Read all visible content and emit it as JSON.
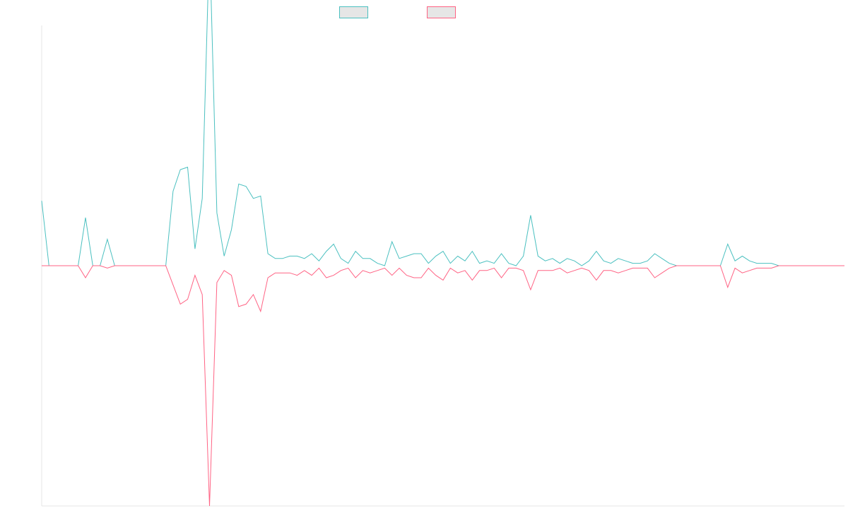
{
  "chart_data": {
    "type": "line",
    "title": "",
    "xlabel": "",
    "ylabel": "",
    "grid": false,
    "legend_placement": "top-center",
    "ylim": [
      -100,
      100
    ],
    "x": [
      0,
      1,
      2,
      3,
      4,
      5,
      6,
      7,
      8,
      9,
      10,
      11,
      12,
      13,
      14,
      15,
      16,
      17,
      18,
      19,
      20,
      21,
      22,
      23,
      24,
      25,
      26,
      27,
      28,
      29,
      30,
      31,
      32,
      33,
      34,
      35,
      36,
      37,
      38,
      39,
      40,
      41,
      42,
      43,
      44,
      45,
      46,
      47,
      48,
      49,
      50,
      51,
      52,
      53,
      54,
      55,
      56,
      57,
      58,
      59,
      60,
      61,
      62,
      63,
      64,
      65,
      66,
      67,
      68,
      69,
      70,
      71,
      72,
      73,
      74,
      75,
      76,
      77,
      78,
      79,
      80,
      81,
      82,
      83,
      84,
      85,
      86,
      87,
      88,
      89,
      90,
      91,
      92,
      93,
      94,
      95,
      96,
      97,
      98,
      99,
      100,
      101,
      102,
      103,
      104,
      105,
      106,
      107,
      108,
      109,
      110
    ],
    "series": [
      {
        "color": "#4bc0c0",
        "fill": "#e6e6e6",
        "values": [
          27,
          0,
          0,
          0,
          0,
          0,
          20,
          0,
          0,
          11,
          0,
          0,
          0,
          0,
          0,
          0,
          0,
          0,
          31,
          40,
          41,
          7,
          28,
          136,
          22,
          4,
          15,
          34,
          33,
          28,
          29,
          5,
          3,
          3,
          4,
          4,
          3,
          5,
          2,
          6,
          9,
          3,
          1,
          6,
          3,
          3,
          1,
          0,
          10,
          3,
          4,
          5,
          5,
          1,
          4,
          6,
          1,
          4,
          2,
          6,
          1,
          2,
          1,
          5,
          1,
          0,
          4,
          21,
          4,
          2,
          3,
          1,
          3,
          2,
          0,
          2,
          6,
          2,
          1,
          3,
          2,
          1,
          1,
          2,
          5,
          3,
          1,
          0,
          0,
          0,
          0,
          0,
          0,
          0,
          9,
          2,
          4,
          2,
          1,
          1,
          1,
          0,
          0,
          0,
          0,
          0,
          0,
          0,
          0,
          0,
          0
        ]
      },
      {
        "color": "#ff6384",
        "fill": "#e6e6e6",
        "values": [
          0,
          0,
          0,
          0,
          0,
          0,
          -5,
          0,
          0,
          -1,
          0,
          0,
          0,
          0,
          0,
          0,
          0,
          0,
          -8,
          -16,
          -14,
          -4,
          -12,
          -100,
          -7,
          -2,
          -4,
          -17,
          -16,
          -12,
          -19,
          -5,
          -3,
          -3,
          -3,
          -4,
          -2,
          -4,
          -1,
          -5,
          -4,
          -2,
          -1,
          -5,
          -2,
          -3,
          -2,
          -1,
          -4,
          -1,
          -4,
          -5,
          -5,
          -1,
          -4,
          -6,
          -1,
          -3,
          -2,
          -6,
          -2,
          -2,
          -1,
          -5,
          -1,
          -1,
          -2,
          -10,
          -2,
          -2,
          -2,
          -1,
          -3,
          -2,
          -1,
          -2,
          -6,
          -2,
          -2,
          -3,
          -2,
          -1,
          -1,
          -1,
          -5,
          -3,
          -1,
          0,
          0,
          0,
          0,
          0,
          0,
          0,
          -9,
          -1,
          -3,
          -2,
          -1,
          -1,
          -1,
          0,
          0,
          0,
          0,
          0,
          0,
          0,
          0,
          0,
          0
        ]
      }
    ]
  }
}
